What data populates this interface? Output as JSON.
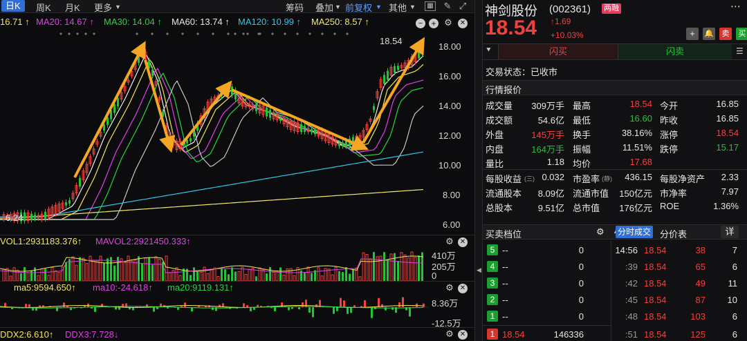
{
  "tabs": {
    "day": "日K",
    "week": "周K",
    "month": "月K",
    "more": "更多"
  },
  "toolbar": {
    "chips": "筹码",
    "overlay": "叠加",
    "adjust": "前复权",
    "other": "其他"
  },
  "ma_legend": {
    "ma10": "16.71 ↑",
    "ma20": "MA20: 14.67 ↑",
    "ma30": "MA30: 14.04 ↑",
    "ma60": "MA60: 13.74 ↑",
    "ma120": "MA120: 10.99 ↑",
    "ma250": "MA250: 8.57 ↑"
  },
  "price_axis": [
    "18.00",
    "16.00",
    "14.00",
    "12.00",
    "10.00",
    "8.00",
    "6.00"
  ],
  "chart_labels": {
    "high_marker": "18.54",
    "low_marker": "6.24"
  },
  "volume": {
    "vol1": "VOL1:2931183.376↑",
    "mavol2": "MAVOL2:2921450.333↑",
    "axis": [
      "410万",
      "205万",
      "0"
    ]
  },
  "indicator": {
    "ma5": "ma5:9594.650↑",
    "ma10": "ma10:-24.618↑",
    "ma20": "ma20:9119.131↑",
    "axis_top": "8.36万",
    "axis_bottom": "-12.5万"
  },
  "ddx": {
    "ddx2": "DDX2:6.610↑",
    "ddx3": "DDX3:7.728↓"
  },
  "stock": {
    "name": "神剑股份",
    "code": "(002361)",
    "badge": "两融",
    "price": "18.54",
    "change": "↑1.69",
    "change_pct": "+10.03%"
  },
  "actions": {
    "sell": "卖",
    "buy": "买",
    "flash_buy": "闪买",
    "flash_sell": "闪卖"
  },
  "status": "交易状态：已收市",
  "quote_section": "行情报价",
  "quote": [
    {
      "l1": "成交量",
      "v1": "309万手",
      "l2": "最高",
      "v2": "18.54",
      "l3": "今开",
      "v3": "16.85",
      "c1": "white",
      "c2": "red",
      "c3": "white"
    },
    {
      "l1": "成交额",
      "v1": "54.6亿",
      "l2": "最低",
      "v2": "16.60",
      "l3": "昨收",
      "v3": "16.85",
      "c1": "white",
      "c2": "green",
      "c3": "white"
    },
    {
      "l1": "外盘",
      "v1": "145万手",
      "l2": "换手",
      "v2": "38.16%",
      "l3": "涨停",
      "v3": "18.54",
      "c1": "red",
      "c2": "white",
      "c3": "red"
    },
    {
      "l1": "内盘",
      "v1": "164万手",
      "l2": "振幅",
      "v2": "11.51%",
      "l3": "跌停",
      "v3": "15.17",
      "c1": "green",
      "c2": "white",
      "c3": "green"
    },
    {
      "l1": "量比",
      "v1": "1.18",
      "l2": "均价",
      "v2": "17.68",
      "l3": "",
      "v3": "",
      "c1": "white",
      "c2": "red",
      "c3": "white"
    }
  ],
  "fundamentals": [
    {
      "l1": "每股收益",
      "n1": "(三)",
      "v1": "0.032",
      "l2": "市盈率",
      "n2": "(静)",
      "v2": "436.15",
      "l3": "每股净资产",
      "v3": "2.33"
    },
    {
      "l1": "流通股本",
      "n1": "",
      "v1": "8.09亿",
      "l2": "流通市值",
      "n2": "",
      "v2": "150亿元",
      "l3": "市净率",
      "v3": "7.97"
    },
    {
      "l1": "总股本",
      "n1": "",
      "v1": "9.51亿",
      "l2": "总市值",
      "n2": "",
      "v2": "176亿元",
      "l3": "ROE",
      "v3": "1.36%"
    }
  ],
  "orderbook": {
    "title": "买卖档位",
    "tab_ticks": "分时成交",
    "tab_price": "分价表",
    "detail": "详",
    "sells": [
      {
        "lvl": "5",
        "price": "--",
        "vol": "0"
      },
      {
        "lvl": "4",
        "price": "--",
        "vol": "0"
      },
      {
        "lvl": "3",
        "price": "--",
        "vol": "0"
      },
      {
        "lvl": "2",
        "price": "--",
        "vol": "0"
      },
      {
        "lvl": "1",
        "price": "--",
        "vol": "0"
      }
    ],
    "buy1": {
      "lvl": "1",
      "price": "18.54",
      "vol": "146336"
    }
  },
  "ticks": [
    {
      "time": "14:56",
      "price": "18.54",
      "vol": "38",
      "n": "7"
    },
    {
      "time": ":39",
      "price": "18.54",
      "vol": "65",
      "n": "6"
    },
    {
      "time": ":42",
      "price": "18.54",
      "vol": "49",
      "n": "11"
    },
    {
      "time": ":45",
      "price": "18.54",
      "vol": "87",
      "n": "10"
    },
    {
      "time": ":48",
      "price": "18.54",
      "vol": "103",
      "n": "6"
    },
    {
      "time": ":51",
      "price": "18.54",
      "vol": "125",
      "n": "6"
    }
  ],
  "colors": {
    "up": "#f0413e",
    "down": "#25c337",
    "accent": "#2f6fd6",
    "arrow": "#f5a623"
  }
}
